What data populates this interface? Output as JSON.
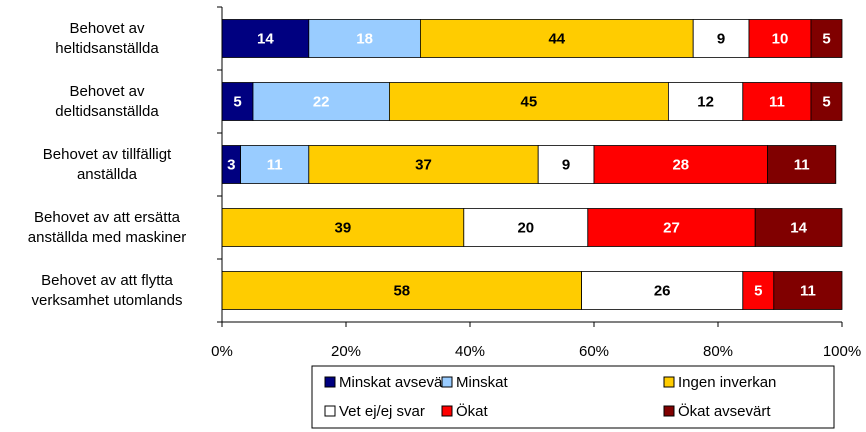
{
  "chart_data": {
    "type": "stacked_bar_horizontal",
    "categories": [
      "Behovet av\nheltidsanställda",
      "Behovet av\ndeltidsanställda",
      "Behovet av tillfälligt\nanställda",
      "Behovet av att ersätta\nanställda med maskiner",
      "Behovet av att flytta\nverksamhet utomlands"
    ],
    "series": [
      {
        "name": "Minskat avsevärt",
        "color": "#000080",
        "label_color": "#ffffff",
        "values": [
          14,
          5,
          3,
          null,
          null
        ]
      },
      {
        "name": "Minskat",
        "color": "#99ccff",
        "label_color": "#ffffff",
        "values": [
          18,
          22,
          11,
          null,
          null
        ]
      },
      {
        "name": "Ingen inverkan",
        "color": "#ffcc00",
        "label_color": "#000000",
        "values": [
          44,
          45,
          37,
          39,
          58
        ]
      },
      {
        "name": "Vet ej/ej svar",
        "color": "#ffffff",
        "label_color": "#000000",
        "values": [
          9,
          12,
          9,
          20,
          26
        ]
      },
      {
        "name": "Ökat",
        "color": "#ff0000",
        "label_color": "#ffffff",
        "values": [
          10,
          11,
          28,
          27,
          5
        ]
      },
      {
        "name": "Ökat avsevärt",
        "color": "#800000",
        "label_color": "#ffffff",
        "values": [
          5,
          5,
          11,
          14,
          11
        ]
      }
    ],
    "xlim": [
      0,
      100
    ],
    "xticks": [
      {
        "value": 0,
        "label": "0%"
      },
      {
        "value": 20,
        "label": "20%"
      },
      {
        "value": 40,
        "label": "40%"
      },
      {
        "value": 60,
        "label": "60%"
      },
      {
        "value": 80,
        "label": "80%"
      },
      {
        "value": 100,
        "label": "100%"
      }
    ],
    "legend": "bottom"
  }
}
